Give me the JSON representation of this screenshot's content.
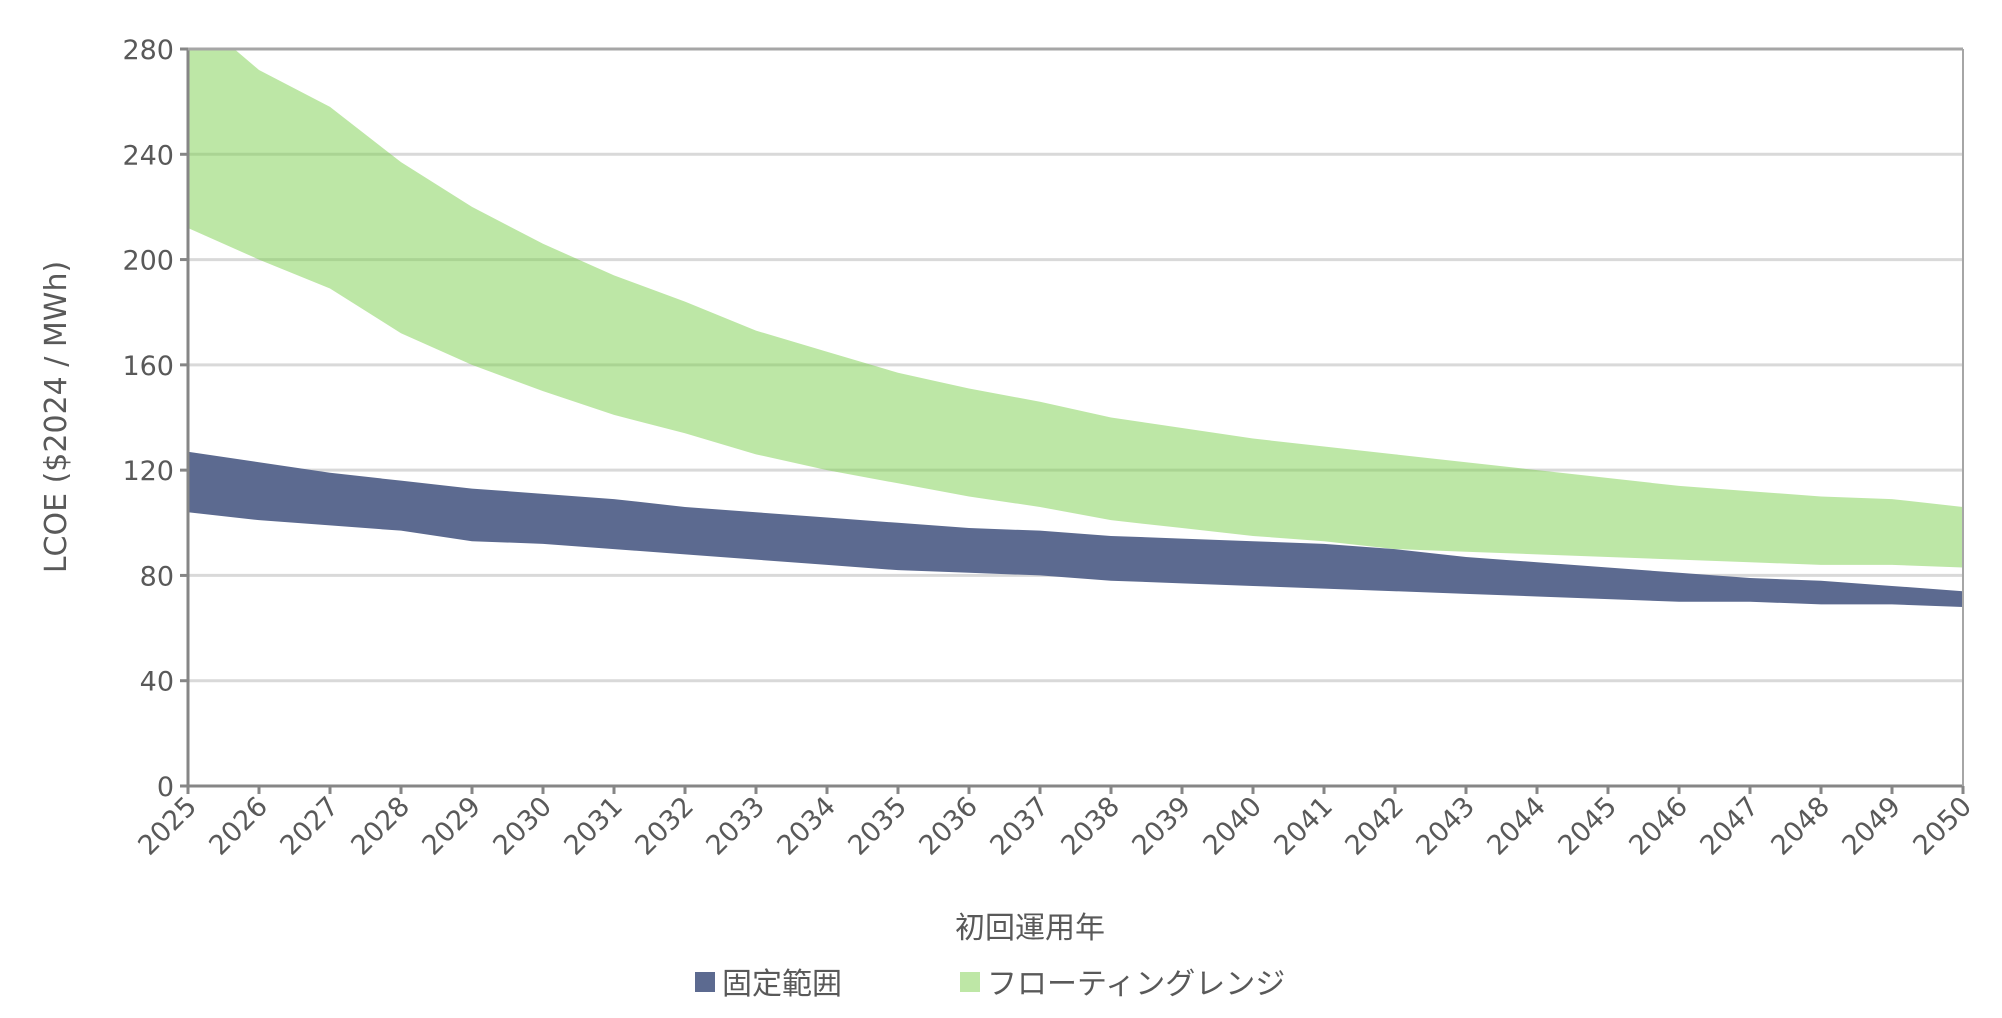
{
  "chart_data": {
    "type": "area",
    "subtype": "range-band",
    "title": "",
    "xlabel": "初回運用年",
    "ylabel": "LCOE ($2024 / MWh)",
    "ylim": [
      0,
      280
    ],
    "yticks": [
      0,
      40,
      80,
      120,
      160,
      200,
      240,
      280
    ],
    "grid": true,
    "legend_position": "bottom",
    "x": [
      2025,
      2026,
      2027,
      2028,
      2029,
      2030,
      2031,
      2032,
      2033,
      2034,
      2035,
      2036,
      2037,
      2038,
      2039,
      2040,
      2041,
      2042,
      2043,
      2044,
      2045,
      2046,
      2047,
      2048,
      2049,
      2050
    ],
    "series": [
      {
        "name": "固定範囲",
        "color": "#5c6a90",
        "low": [
          104,
          101,
          99,
          97,
          93,
          92,
          90,
          88,
          86,
          84,
          82,
          81,
          80,
          78,
          77,
          76,
          75,
          74,
          73,
          72,
          71,
          70,
          70,
          69,
          69,
          68
        ],
        "high": [
          127,
          123,
          119,
          116,
          113,
          111,
          109,
          106,
          104,
          102,
          100,
          98,
          97,
          95,
          94,
          93,
          92,
          90,
          87,
          85,
          83,
          81,
          79,
          78,
          76,
          74
        ]
      },
      {
        "name": "フローティングレンジ",
        "color": "#7ccf4e",
        "low": [
          212,
          200,
          189,
          172,
          160,
          150,
          141,
          134,
          126,
          120,
          115,
          110,
          106,
          101,
          98,
          95,
          93,
          90,
          89,
          88,
          87,
          86,
          85,
          84,
          84,
          83
        ],
        "high": [
          295,
          272,
          258,
          237,
          220,
          206,
          194,
          184,
          173,
          165,
          157,
          151,
          146,
          140,
          136,
          132,
          129,
          126,
          123,
          120,
          117,
          114,
          112,
          110,
          109,
          106
        ]
      }
    ]
  }
}
